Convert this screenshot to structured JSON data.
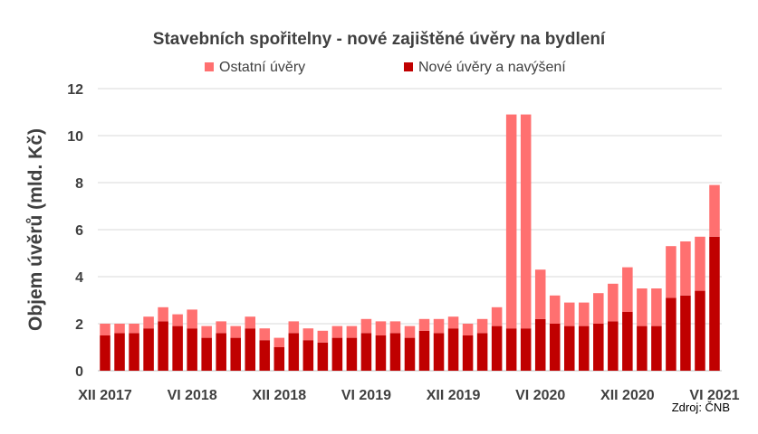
{
  "chart_data": {
    "type": "bar",
    "stacked": true,
    "title": "Stavebních spořitelny - nové zajištěné úvěry na bydlení",
    "ylabel": "Objem úvěrů (mld. Kč)",
    "ylim": [
      0,
      12
    ],
    "yticks": [
      "0",
      "2",
      "4",
      "6",
      "8",
      "10",
      "12"
    ],
    "grid": true,
    "legend": "top-center",
    "xtick_labels": [
      {
        "index": 0,
        "label": "XII 2017"
      },
      {
        "index": 6,
        "label": "VI 2018"
      },
      {
        "index": 12,
        "label": "XII 2018"
      },
      {
        "index": 18,
        "label": "VI 2019"
      },
      {
        "index": 24,
        "label": "XII 2019"
      },
      {
        "index": 30,
        "label": "VI 2020"
      },
      {
        "index": 36,
        "label": "XII 2020"
      },
      {
        "index": 42,
        "label": "VI 2021"
      }
    ],
    "series": [
      {
        "name": "Nové úvěry a navýšení",
        "color": "#C00000",
        "values": [
          1.5,
          1.6,
          1.6,
          1.8,
          2.1,
          1.9,
          1.8,
          1.4,
          1.6,
          1.4,
          1.8,
          1.3,
          1.0,
          1.6,
          1.3,
          1.2,
          1.4,
          1.4,
          1.6,
          1.5,
          1.6,
          1.4,
          1.7,
          1.6,
          1.8,
          1.5,
          1.6,
          1.9,
          1.8,
          1.8,
          2.2,
          2.0,
          1.9,
          1.9,
          2.0,
          2.1,
          2.5,
          1.9,
          1.9,
          3.1,
          3.2,
          3.4,
          5.7
        ]
      },
      {
        "name": "Ostatní úvěry",
        "color": "#FF7070",
        "values": [
          0.5,
          0.4,
          0.4,
          0.5,
          0.6,
          0.5,
          0.8,
          0.5,
          0.5,
          0.5,
          0.5,
          0.5,
          0.4,
          0.5,
          0.5,
          0.5,
          0.5,
          0.5,
          0.6,
          0.6,
          0.5,
          0.5,
          0.5,
          0.6,
          0.5,
          0.5,
          0.6,
          0.8,
          9.1,
          9.1,
          2.1,
          1.2,
          1.0,
          1.0,
          1.3,
          1.6,
          1.9,
          1.6,
          1.6,
          2.2,
          2.3,
          2.3,
          2.2
        ]
      }
    ],
    "source": "Zdroj: ČNB"
  }
}
